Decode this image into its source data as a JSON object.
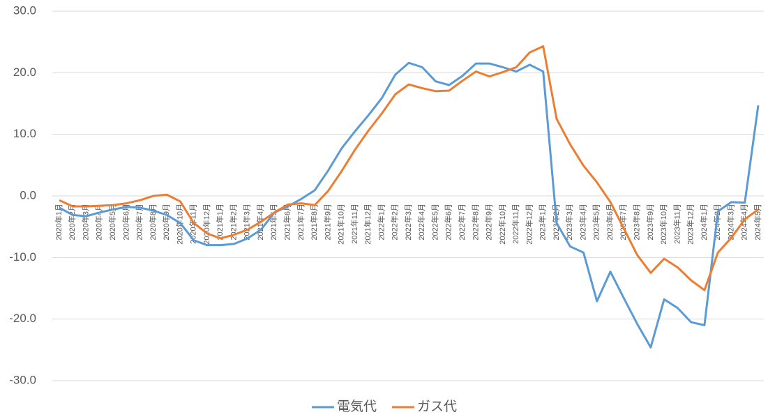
{
  "chart_data": {
    "type": "line",
    "categories": [
      "2020年1月",
      "2020年2月",
      "2020年3月",
      "2020年4月",
      "2020年5月",
      "2020年6月",
      "2020年7月",
      "2020年8月",
      "2020年9月",
      "2020年10月",
      "2020年11月",
      "2020年12月",
      "2021年1月",
      "2021年2月",
      "2021年3月",
      "2021年4月",
      "2021年5月",
      "2021年6月",
      "2021年7月",
      "2021年8月",
      "2021年9月",
      "2021年10月",
      "2021年11月",
      "2021年12月",
      "2022年1月",
      "2022年2月",
      "2022年3月",
      "2022年4月",
      "2022年5月",
      "2022年6月",
      "2022年7月",
      "2022年8月",
      "2022年9月",
      "2022年10月",
      "2022年11月",
      "2022年12月",
      "2023年1月",
      "2023年2月",
      "2023年3月",
      "2023年4月",
      "2023年5月",
      "2023年6月",
      "2023年7月",
      "2023年8月",
      "2023年9月",
      "2023年10月",
      "2023年11月",
      "2023年12月",
      "2024年1月",
      "2024年2月",
      "2024年3月",
      "2024年4月",
      "2024年5月"
    ],
    "series": [
      {
        "name": "電気代",
        "color": "#5b9bd5",
        "values": [
          -1.9,
          -3.1,
          -3.3,
          -2.7,
          -2.2,
          -1.8,
          -1.9,
          -2.4,
          -3.1,
          -4.4,
          -7.2,
          -8.0,
          -8.0,
          -7.8,
          -6.9,
          -5.5,
          -2.7,
          -1.7,
          -0.5,
          0.9,
          4.1,
          7.7,
          10.5,
          13.1,
          15.9,
          19.7,
          21.6,
          20.9,
          18.6,
          18.0,
          19.5,
          21.5,
          21.5,
          20.9,
          20.2,
          21.3,
          20.2,
          -4.4,
          -8.2,
          -9.2,
          -17.1,
          -12.3,
          -16.6,
          -20.8,
          -24.6,
          -16.8,
          -18.2,
          -20.5,
          -21.0,
          -2.5,
          -1.0,
          -1.1,
          14.7
        ]
      },
      {
        "name": "ガス代",
        "color": "#ed7d31",
        "values": [
          -0.7,
          -1.7,
          -1.7,
          -1.6,
          -1.5,
          -1.2,
          -0.7,
          0.0,
          0.2,
          -0.9,
          -4.4,
          -6.1,
          -6.9,
          -6.3,
          -5.5,
          -4.2,
          -2.7,
          -1.4,
          -1.2,
          -1.5,
          0.8,
          4.0,
          7.5,
          10.6,
          13.4,
          16.5,
          18.1,
          17.5,
          17.0,
          17.1,
          18.7,
          20.2,
          19.4,
          20.1,
          20.9,
          23.3,
          24.3,
          12.5,
          8.4,
          4.9,
          2.2,
          -1.0,
          -5.3,
          -9.6,
          -12.5,
          -10.2,
          -11.6,
          -13.7,
          -15.3,
          -9.2,
          -6.8,
          -3.8,
          -2.2
        ]
      }
    ],
    "ylim": [
      -30,
      30
    ],
    "yticks": [
      {
        "value": -30,
        "label": "-30.0"
      },
      {
        "value": -20,
        "label": "-20.0"
      },
      {
        "value": -10,
        "label": "-10.0"
      },
      {
        "value": 0,
        "label": "0.0"
      },
      {
        "value": 10,
        "label": "10.0"
      },
      {
        "value": 20,
        "label": "20.0"
      },
      {
        "value": 30,
        "label": "30.0"
      }
    ],
    "grid": true,
    "legend": "bottom"
  }
}
